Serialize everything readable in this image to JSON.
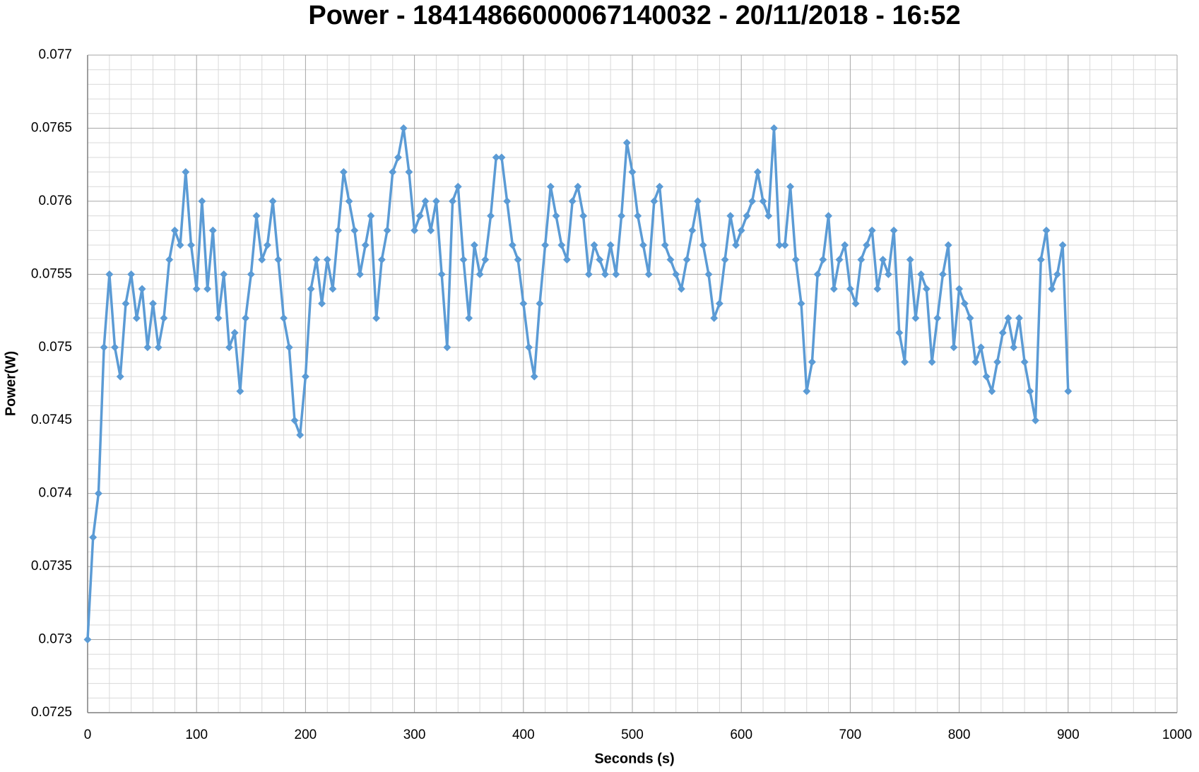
{
  "chart_data": {
    "type": "line",
    "title": "Power - 18414866000067140032 - 20/11/2018 - 16:52",
    "x_label": "Seconds (s)",
    "y_label": "Power(W)",
    "xlim": [
      0,
      1000
    ],
    "xticks": [
      0,
      100,
      200,
      300,
      400,
      500,
      600,
      700,
      800,
      900,
      1000
    ],
    "ylim": [
      0.0725,
      0.077
    ],
    "yticks": [
      0.0725,
      0.073,
      0.0735,
      0.074,
      0.0745,
      0.075,
      0.0755,
      0.076,
      0.0765,
      0.077
    ],
    "grid": true,
    "minor_grid": true,
    "marker": "diamond",
    "x": [
      0,
      5,
      10,
      15,
      20,
      25,
      30,
      35,
      40,
      45,
      50,
      55,
      60,
      65,
      70,
      75,
      80,
      85,
      90,
      95,
      100,
      105,
      110,
      115,
      120,
      125,
      130,
      135,
      140,
      145,
      150,
      155,
      160,
      165,
      170,
      175,
      180,
      185,
      190,
      195,
      200,
      205,
      210,
      215,
      220,
      225,
      230,
      235,
      240,
      245,
      250,
      255,
      260,
      265,
      270,
      275,
      280,
      285,
      290,
      295,
      300,
      305,
      310,
      315,
      320,
      325,
      330,
      335,
      340,
      345,
      350,
      355,
      360,
      365,
      370,
      375,
      380,
      385,
      390,
      395,
      400,
      405,
      410,
      415,
      420,
      425,
      430,
      435,
      440,
      445,
      450,
      455,
      460,
      465,
      470,
      475,
      480,
      485,
      490,
      495,
      500,
      505,
      510,
      515,
      520,
      525,
      530,
      535,
      540,
      545,
      550,
      555,
      560,
      565,
      570,
      575,
      580,
      585,
      590,
      595,
      600,
      605,
      610,
      615,
      620,
      625,
      630,
      635,
      640,
      645,
      650,
      655,
      660,
      665,
      670,
      675,
      680,
      685,
      690,
      695,
      700,
      705,
      710,
      715,
      720,
      725,
      730,
      735,
      740,
      745,
      750,
      755,
      760,
      765,
      770,
      775,
      780,
      785,
      790,
      795,
      800,
      805,
      810,
      815,
      820,
      825,
      830,
      835,
      840,
      845,
      850,
      855,
      860,
      865,
      870,
      875,
      880,
      885,
      890,
      895,
      900
    ],
    "series": [
      {
        "name": "Power",
        "color": "#5b9bd5",
        "values": [
          0.073,
          0.0737,
          0.074,
          0.075,
          0.0755,
          0.075,
          0.0748,
          0.0753,
          0.0755,
          0.0752,
          0.0754,
          0.075,
          0.0753,
          0.075,
          0.0752,
          0.0756,
          0.0758,
          0.0757,
          0.0762,
          0.0757,
          0.0754,
          0.076,
          0.0754,
          0.0758,
          0.0752,
          0.0755,
          0.075,
          0.0751,
          0.0747,
          0.0752,
          0.0755,
          0.0759,
          0.0756,
          0.0757,
          0.076,
          0.0756,
          0.0752,
          0.075,
          0.0745,
          0.0744,
          0.0748,
          0.0754,
          0.0756,
          0.0753,
          0.0756,
          0.0754,
          0.0758,
          0.0762,
          0.076,
          0.0758,
          0.0755,
          0.0757,
          0.0759,
          0.0752,
          0.0756,
          0.0758,
          0.0762,
          0.0763,
          0.0765,
          0.0762,
          0.0758,
          0.0759,
          0.076,
          0.0758,
          0.076,
          0.0755,
          0.075,
          0.076,
          0.0761,
          0.0756,
          0.0752,
          0.0757,
          0.0755,
          0.0756,
          0.0759,
          0.0763,
          0.0763,
          0.076,
          0.0757,
          0.0756,
          0.0753,
          0.075,
          0.0748,
          0.0753,
          0.0757,
          0.0761,
          0.0759,
          0.0757,
          0.0756,
          0.076,
          0.0761,
          0.0759,
          0.0755,
          0.0757,
          0.0756,
          0.0755,
          0.0757,
          0.0755,
          0.0759,
          0.0764,
          0.0762,
          0.0759,
          0.0757,
          0.0755,
          0.076,
          0.0761,
          0.0757,
          0.0756,
          0.0755,
          0.0754,
          0.0756,
          0.0758,
          0.076,
          0.0757,
          0.0755,
          0.0752,
          0.0753,
          0.0756,
          0.0759,
          0.0757,
          0.0758,
          0.0759,
          0.076,
          0.0762,
          0.076,
          0.0759,
          0.0765,
          0.0757,
          0.0757,
          0.0761,
          0.0756,
          0.0753,
          0.0747,
          0.0749,
          0.0755,
          0.0756,
          0.0759,
          0.0754,
          0.0756,
          0.0757,
          0.0754,
          0.0753,
          0.0756,
          0.0757,
          0.0758,
          0.0754,
          0.0756,
          0.0755,
          0.0758,
          0.0751,
          0.0749,
          0.0756,
          0.0752,
          0.0755,
          0.0754,
          0.0749,
          0.0752,
          0.0755,
          0.0757,
          0.075,
          0.0754,
          0.0753,
          0.0752,
          0.0749,
          0.075,
          0.0748,
          0.0747,
          0.0749,
          0.0751,
          0.0752,
          0.075,
          0.0752,
          0.0749,
          0.0747,
          0.0745,
          0.0756,
          0.0758,
          0.0754,
          0.0755,
          0.0757,
          0.0747
        ]
      }
    ]
  }
}
